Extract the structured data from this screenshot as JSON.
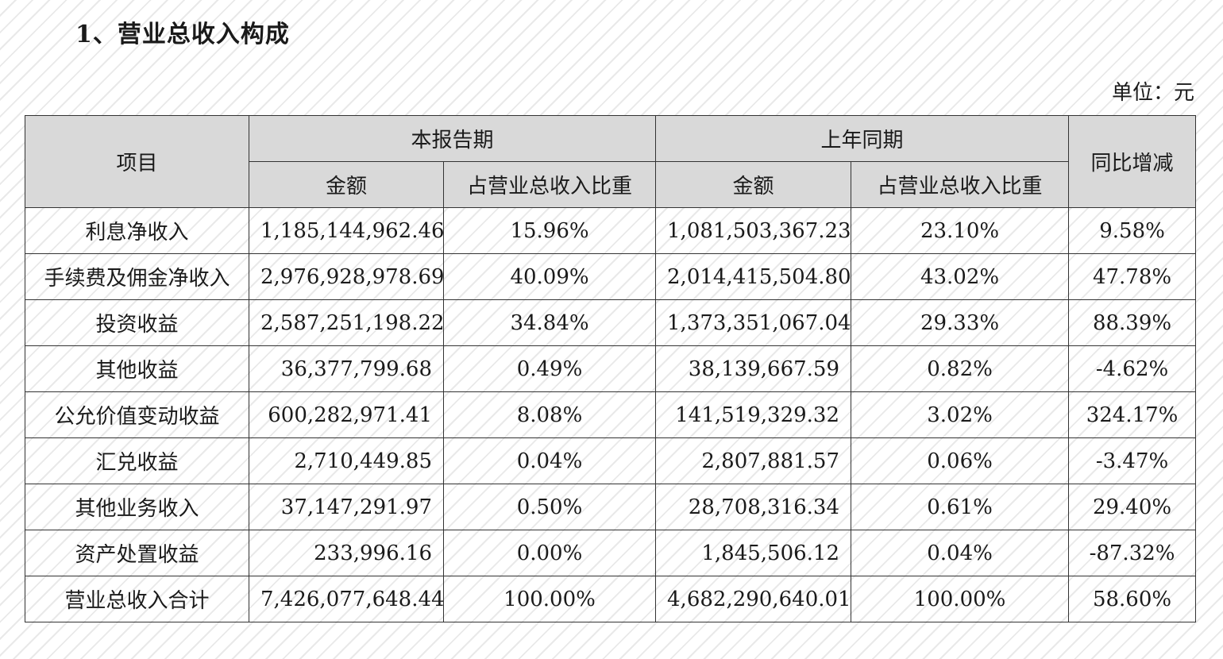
{
  "title": "1、营业总收入构成",
  "unit": "单位：元",
  "header": {
    "item": "项目",
    "current_period": "本报告期",
    "prior_period": "上年同期",
    "yoy": "同比增减",
    "amount": "金额",
    "share": "占营业总收入比重"
  },
  "rows": [
    {
      "item": "利息净收入",
      "cur_amount": "1,185,144,962.46",
      "cur_share": "15.96%",
      "prev_amount": "1,081,503,367.23",
      "prev_share": "23.10%",
      "yoy": "9.58%"
    },
    {
      "item": "手续费及佣金净收入",
      "cur_amount": "2,976,928,978.69",
      "cur_share": "40.09%",
      "prev_amount": "2,014,415,504.80",
      "prev_share": "43.02%",
      "yoy": "47.78%"
    },
    {
      "item": "投资收益",
      "cur_amount": "2,587,251,198.22",
      "cur_share": "34.84%",
      "prev_amount": "1,373,351,067.04",
      "prev_share": "29.33%",
      "yoy": "88.39%"
    },
    {
      "item": "其他收益",
      "cur_amount": "36,377,799.68",
      "cur_share": "0.49%",
      "prev_amount": "38,139,667.59",
      "prev_share": "0.82%",
      "yoy": "-4.62%"
    },
    {
      "item": "公允价值变动收益",
      "cur_amount": "600,282,971.41",
      "cur_share": "8.08%",
      "prev_amount": "141,519,329.32",
      "prev_share": "3.02%",
      "yoy": "324.17%"
    },
    {
      "item": "汇兑收益",
      "cur_amount": "2,710,449.85",
      "cur_share": "0.04%",
      "prev_amount": "2,807,881.57",
      "prev_share": "0.06%",
      "yoy": "-3.47%"
    },
    {
      "item": "其他业务收入",
      "cur_amount": "37,147,291.97",
      "cur_share": "0.50%",
      "prev_amount": "28,708,316.34",
      "prev_share": "0.61%",
      "yoy": "29.40%"
    },
    {
      "item": "资产处置收益",
      "cur_amount": "233,996.16",
      "cur_share": "0.00%",
      "prev_amount": "1,845,506.12",
      "prev_share": "0.04%",
      "yoy": "-87.32%"
    },
    {
      "item": "营业总收入合计",
      "cur_amount": "7,426,077,648.44",
      "cur_share": "100.00%",
      "prev_amount": "4,682,290,640.01",
      "prev_share": "100.00%",
      "yoy": "58.60%"
    }
  ]
}
